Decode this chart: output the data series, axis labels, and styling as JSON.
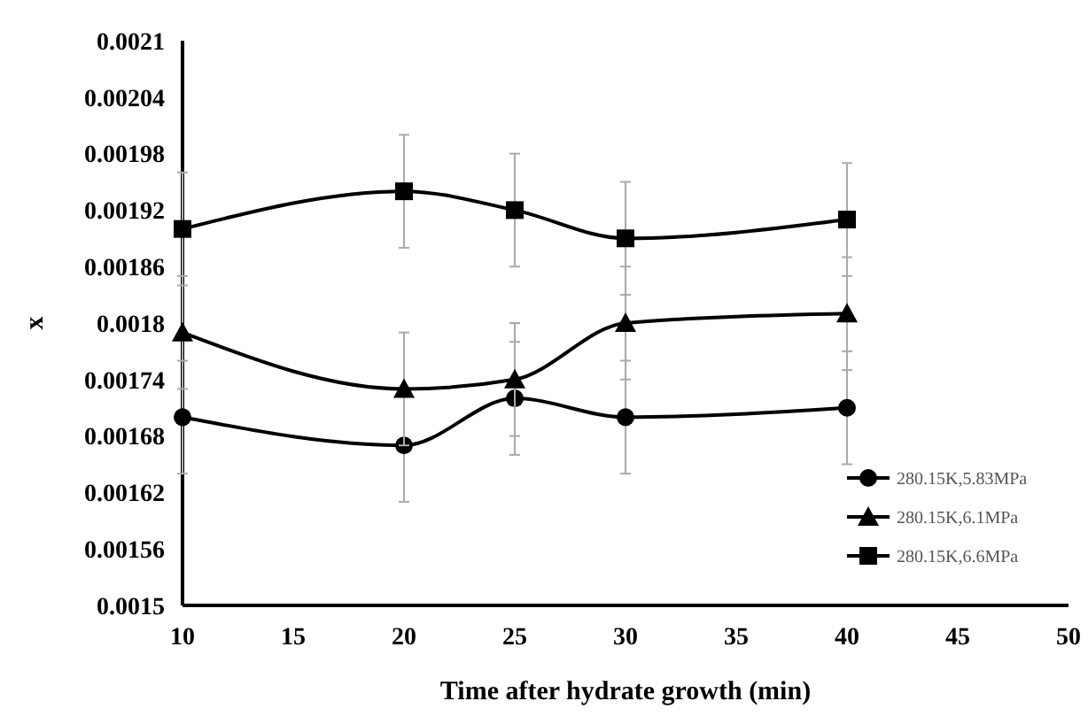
{
  "chart_data": {
    "type": "line",
    "xlabel": "Time after hydrate growth (min)",
    "ylabel": "x",
    "x": [
      10,
      20,
      25,
      30,
      40
    ],
    "xlim": [
      10,
      50
    ],
    "xticks": [
      10,
      15,
      20,
      25,
      30,
      35,
      40,
      45,
      50
    ],
    "ylim": [
      0.0015,
      0.0021
    ],
    "yticks": [
      0.0015,
      0.00156,
      0.00162,
      0.00168,
      0.00174,
      0.0018,
      0.00186,
      0.00192,
      0.00198,
      0.00204,
      0.0021
    ],
    "grid": false,
    "legend": "bottom right",
    "series": [
      {
        "name": "280.15K,5.83MPa",
        "color": "#000000",
        "marker": "circle",
        "values": [
          0.0017,
          0.00167,
          0.00172,
          0.0017,
          0.00171
        ],
        "errors": [
          6e-05,
          6e-05,
          6e-05,
          6e-05,
          6e-05
        ]
      },
      {
        "name": "280.15K,6.1MPa",
        "color": "#000000",
        "marker": "triangle",
        "values": [
          0.00179,
          0.00173,
          0.00174,
          0.0018,
          0.00181
        ],
        "errors": [
          6e-05,
          6e-05,
          6e-05,
          6e-05,
          6e-05
        ]
      },
      {
        "name": "280.15K,6.6MPa",
        "color": "#000000",
        "marker": "square",
        "values": [
          0.0019,
          0.00194,
          0.00192,
          0.00189,
          0.00191
        ],
        "errors": [
          6e-05,
          6e-05,
          6e-05,
          6e-05,
          6e-05
        ]
      }
    ]
  }
}
